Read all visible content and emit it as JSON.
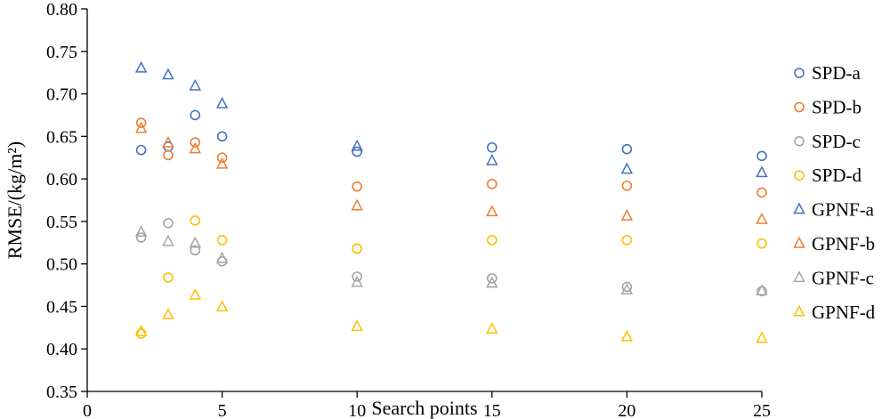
{
  "chart_data": {
    "type": "scatter",
    "xlabel": "Search points",
    "ylabel": "RMSE/(kg/m²)",
    "xlim": [
      0,
      25
    ],
    "ylim": [
      0.35,
      0.8
    ],
    "x_ticks": [
      "0",
      "5",
      "10",
      "15",
      "20",
      "25"
    ],
    "y_ticks": [
      "0.35",
      "0.40",
      "0.45",
      "0.50",
      "0.55",
      "0.60",
      "0.65",
      "0.70",
      "0.75",
      "0.80"
    ],
    "grid": false,
    "legend_position": "right",
    "x": [
      2,
      3,
      4,
      5,
      10,
      15,
      20,
      25
    ],
    "series": [
      {
        "name": "SPD-a",
        "marker": "circle",
        "color": "#4472C4",
        "values": [
          0.634,
          0.638,
          0.675,
          0.65,
          0.632,
          0.637,
          0.635,
          0.627
        ]
      },
      {
        "name": "SPD-b",
        "marker": "circle",
        "color": "#ED7D31",
        "values": [
          0.666,
          0.628,
          0.643,
          0.625,
          0.591,
          0.594,
          0.592,
          0.584
        ]
      },
      {
        "name": "SPD-c",
        "marker": "circle",
        "color": "#A5A5A5",
        "values": [
          0.531,
          0.548,
          0.516,
          0.503,
          0.485,
          0.483,
          0.473,
          0.468
        ]
      },
      {
        "name": "SPD-d",
        "marker": "circle",
        "color": "#FFC000",
        "values": [
          0.418,
          0.484,
          0.551,
          0.528,
          0.518,
          0.528,
          0.528,
          0.524
        ]
      },
      {
        "name": "GPNF-a",
        "marker": "triangle",
        "color": "#4472C4",
        "values": [
          0.73,
          0.722,
          0.709,
          0.688,
          0.638,
          0.621,
          0.611,
          0.607
        ]
      },
      {
        "name": "GPNF-b",
        "marker": "triangle",
        "color": "#ED7D31",
        "values": [
          0.659,
          0.642,
          0.635,
          0.617,
          0.568,
          0.561,
          0.556,
          0.552
        ]
      },
      {
        "name": "GPNF-c",
        "marker": "triangle",
        "color": "#A5A5A5",
        "values": [
          0.537,
          0.526,
          0.524,
          0.506,
          0.478,
          0.477,
          0.469,
          0.468
        ]
      },
      {
        "name": "GPNF-d",
        "marker": "triangle",
        "color": "#FFC000",
        "values": [
          0.42,
          0.44,
          0.463,
          0.449,
          0.426,
          0.423,
          0.414,
          0.412
        ]
      }
    ]
  }
}
